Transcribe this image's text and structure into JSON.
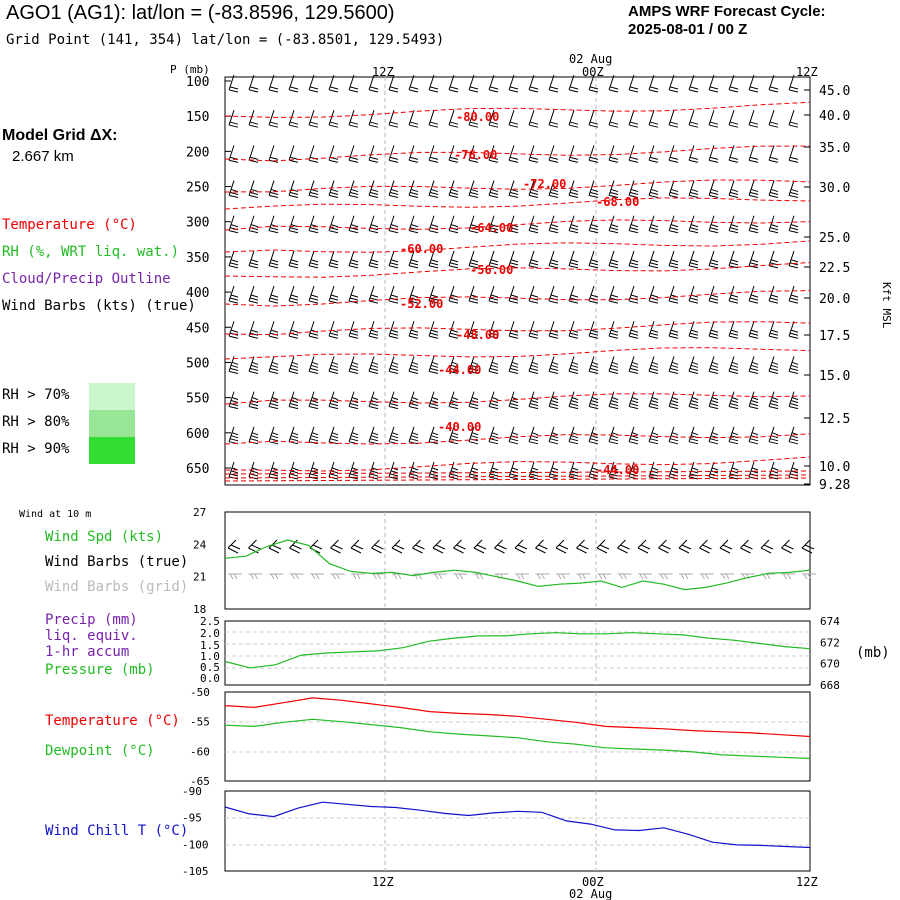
{
  "header": {
    "site_title": "AGO1 (AG1):  lat/lon = (-83.8596, 129.5600)",
    "grid_point": "Grid Point (141, 354) lat/lon = (-83.8501, 129.5493)",
    "cycle_title": "AMPS WRF Forecast Cycle:",
    "cycle_value": "2025-08-01 / 00  Z",
    "grid_dx_label": "Model Grid ΔX:",
    "grid_dx_value": "2.667 km"
  },
  "legend": {
    "temperature": "Temperature (°C)",
    "rh": "RH (%, WRT liq. wat.)",
    "cloud": "Cloud/Precip Outline",
    "wind_barbs": "Wind Barbs (kts) (true)",
    "rh_levels": [
      {
        "label": "RH > 70%",
        "color": "#ccf7cc"
      },
      {
        "label": "RH > 80%",
        "color": "#99e699"
      },
      {
        "label": "RH > 90%",
        "color": "#33dd33"
      }
    ],
    "wind10_title": "Wind at 10 m",
    "wind_spd": "Wind Spd (kts)",
    "wind_barbs_true": "Wind Barbs (true)",
    "wind_barbs_grid": "Wind Barbs (grid)",
    "precip": "Precip (mm)",
    "precip_sub1": "liq. equiv.",
    "precip_sub2": "1-hr accum",
    "pressure": "Pressure (mb)",
    "temp_panel": "Temperature (°C)",
    "dewpoint_panel": "Dewpoint (°C)",
    "windchill_panel": "Wind Chill T (°C)"
  },
  "colors": {
    "temperature": "#ee0000",
    "green": "#22bb22",
    "purple": "#7722aa",
    "blue": "#1111cc",
    "grid_barb": "#bbbbbb"
  },
  "chart_data": [
    {
      "type": "line",
      "panel": "upper-air cross section",
      "x_ticks": [
        "12Z",
        "00Z",
        "12Z"
      ],
      "date_label": "02 Aug",
      "ylabel": "P (mb)",
      "y_ticks": [
        100,
        150,
        200,
        250,
        300,
        350,
        400,
        450,
        500,
        550,
        600,
        650
      ],
      "right_ticks": [
        "45.0",
        "40.0",
        "35.0",
        "30.0",
        "25.0",
        "22.5",
        "20.0",
        "17.5",
        "15.0",
        "12.5",
        "10.0",
        "9.28"
      ],
      "right_label": "Kft MSL",
      "isotherm_labels": [
        "-80.00",
        "-76.00",
        "-72.00",
        "-68.00",
        "-64.00",
        "-60.00",
        "-56.00",
        "-52.00",
        "-48.00",
        "-44.00",
        "-40.00",
        "-44.00"
      ]
    },
    {
      "type": "line",
      "panel": "10 m wind speed",
      "y_ticks": [
        18,
        21,
        24,
        27
      ],
      "ylim": [
        18,
        27
      ],
      "series": [
        {
          "name": "Wind Spd (kts)",
          "values": [
            22.7,
            22.9,
            23.8,
            24.4,
            23.9,
            22.2,
            21.5,
            21.3,
            21.4,
            21.1,
            21.4,
            21.6,
            21.4,
            21.0,
            20.6,
            20.1,
            20.3,
            20.4,
            20.6,
            20.0,
            20.6,
            20.3,
            19.8,
            20.0,
            20.4,
            20.9,
            21.3,
            21.4,
            21.6
          ]
        }
      ]
    },
    {
      "type": "line",
      "panel": "precip / pressure",
      "y_ticks": [
        "0.0",
        "0.5",
        "1.0",
        "1.5",
        "2.0",
        "2.5"
      ],
      "ylim": [
        0,
        2.5
      ],
      "right_ticks": [
        668,
        670,
        672,
        674
      ],
      "right_unit": "(mb)",
      "right_ylim": [
        668,
        674
      ],
      "series": [
        {
          "name": "Pressure (mb)",
          "values": [
            670.2,
            669.6,
            669.9,
            670.8,
            671.0,
            671.1,
            671.2,
            671.5,
            672.1,
            672.4,
            672.6,
            672.6,
            672.8,
            672.9,
            672.8,
            672.8,
            672.9,
            672.8,
            672.7,
            672.4,
            672.2,
            671.9,
            671.6,
            671.4
          ]
        }
      ]
    },
    {
      "type": "line",
      "panel": "temperature / dewpoint",
      "y_ticks": [
        -50,
        -55,
        -60,
        -65
      ],
      "ylim": [
        -65,
        -50
      ],
      "series": [
        {
          "name": "Temperature (°C)",
          "values": [
            -52.3,
            -52.6,
            -51.8,
            -51.0,
            -51.4,
            -52.0,
            -52.6,
            -53.3,
            -53.6,
            -53.8,
            -54.1,
            -54.6,
            -55.1,
            -55.8,
            -56.0,
            -56.2,
            -56.5,
            -56.7,
            -56.9,
            -57.2,
            -57.5
          ]
        },
        {
          "name": "Dewpoint (°C)",
          "values": [
            -55.6,
            -55.8,
            -55.1,
            -54.6,
            -55.0,
            -55.5,
            -56.0,
            -56.7,
            -57.1,
            -57.4,
            -57.7,
            -58.4,
            -58.8,
            -59.4,
            -59.6,
            -59.8,
            -60.1,
            -60.6,
            -60.8,
            -61.0,
            -61.2
          ]
        }
      ]
    },
    {
      "type": "line",
      "panel": "wind chill",
      "y_ticks": [
        -90,
        -95,
        -100,
        -105
      ],
      "ylim": [
        -105,
        -90
      ],
      "series": [
        {
          "name": "Wind Chill T (°C)",
          "values": [
            -93.0,
            -94.3,
            -94.8,
            -93.2,
            -92.1,
            -92.5,
            -92.9,
            -93.1,
            -93.6,
            -94.2,
            -94.6,
            -94.1,
            -93.8,
            -94.0,
            -95.6,
            -96.2,
            -97.3,
            -97.4,
            -96.9,
            -98.1,
            -99.6,
            -100.1,
            -100.2,
            -100.4,
            -100.6
          ]
        }
      ]
    }
  ]
}
